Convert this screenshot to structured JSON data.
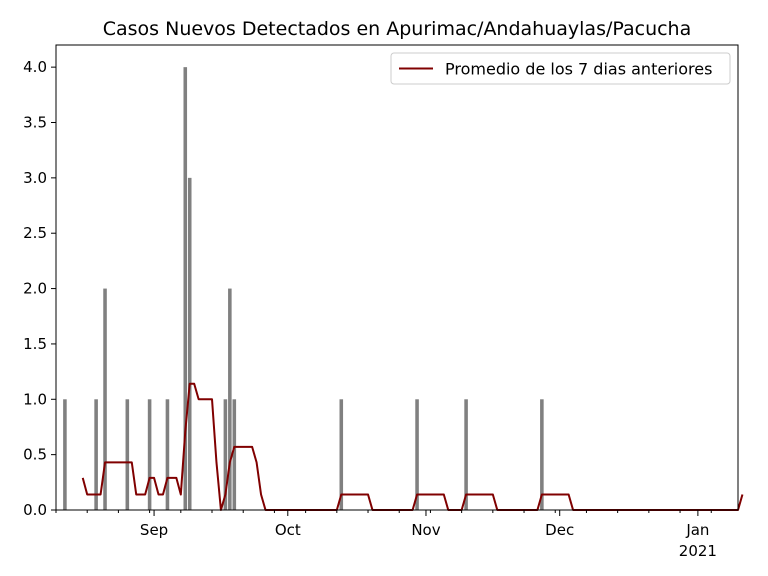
{
  "chart_data": {
    "type": "bar",
    "title": "Casos Nuevos Detectados en Apurimac/Andahuaylas/Pacucha",
    "xlabel": "",
    "ylabel": "",
    "ylim": [
      0,
      4.2
    ],
    "yticks": [
      "0.0",
      "0.5",
      "1.0",
      "1.5",
      "2.0",
      "2.5",
      "3.0",
      "3.5",
      "4.0"
    ],
    "xrange": [
      "2020-08-10",
      "2021-01-10"
    ],
    "xticks": [
      {
        "date": "2020-09-01",
        "label": "Sep"
      },
      {
        "date": "2020-10-01",
        "label": "Oct"
      },
      {
        "date": "2020-11-01",
        "label": "Nov"
      },
      {
        "date": "2020-12-01",
        "label": "Dec"
      },
      {
        "date": "2021-01-01",
        "label": "Jan",
        "sublabel": "2021"
      }
    ],
    "bars": {
      "color": "#808080",
      "points": [
        {
          "date": "2020-08-12",
          "value": 1
        },
        {
          "date": "2020-08-19",
          "value": 1
        },
        {
          "date": "2020-08-21",
          "value": 2
        },
        {
          "date": "2020-08-26",
          "value": 1
        },
        {
          "date": "2020-08-31",
          "value": 1
        },
        {
          "date": "2020-09-04",
          "value": 1
        },
        {
          "date": "2020-09-08",
          "value": 4
        },
        {
          "date": "2020-09-09",
          "value": 3
        },
        {
          "date": "2020-09-17",
          "value": 1
        },
        {
          "date": "2020-09-18",
          "value": 2
        },
        {
          "date": "2020-09-19",
          "value": 1
        },
        {
          "date": "2020-10-13",
          "value": 1
        },
        {
          "date": "2020-10-30",
          "value": 1
        },
        {
          "date": "2020-11-10",
          "value": 1
        },
        {
          "date": "2020-11-27",
          "value": 1
        },
        {
          "date": "2021-01-11",
          "value": 1
        }
      ]
    },
    "series": [
      {
        "name": "Promedio de los 7 dias anteriores",
        "color": "#800000",
        "points": [
          [
            "2020-08-16",
            0.29
          ],
          [
            "2020-08-17",
            0.14
          ],
          [
            "2020-08-20",
            0.14
          ],
          [
            "2020-08-21",
            0.43
          ],
          [
            "2020-08-27",
            0.43
          ],
          [
            "2020-08-28",
            0.14
          ],
          [
            "2020-08-30",
            0.14
          ],
          [
            "2020-08-31",
            0.29
          ],
          [
            "2020-09-01",
            0.29
          ],
          [
            "2020-09-02",
            0.14
          ],
          [
            "2020-09-03",
            0.14
          ],
          [
            "2020-09-04",
            0.29
          ],
          [
            "2020-09-06",
            0.29
          ],
          [
            "2020-09-07",
            0.14
          ],
          [
            "2020-09-08",
            0.71
          ],
          [
            "2020-09-09",
            1.14
          ],
          [
            "2020-09-10",
            1.14
          ],
          [
            "2020-09-11",
            1.0
          ],
          [
            "2020-09-14",
            1.0
          ],
          [
            "2020-09-15",
            0.43
          ],
          [
            "2020-09-16",
            0.0
          ],
          [
            "2020-09-17",
            0.14
          ],
          [
            "2020-09-18",
            0.43
          ],
          [
            "2020-09-19",
            0.57
          ],
          [
            "2020-09-23",
            0.57
          ],
          [
            "2020-09-24",
            0.43
          ],
          [
            "2020-09-25",
            0.14
          ],
          [
            "2020-09-26",
            0.0
          ],
          [
            "2020-10-12",
            0.0
          ],
          [
            "2020-10-13",
            0.14
          ],
          [
            "2020-10-19",
            0.14
          ],
          [
            "2020-10-20",
            0.0
          ],
          [
            "2020-10-29",
            0.0
          ],
          [
            "2020-10-30",
            0.14
          ],
          [
            "2020-11-05",
            0.14
          ],
          [
            "2020-11-06",
            0.0
          ],
          [
            "2020-11-09",
            0.0
          ],
          [
            "2020-11-10",
            0.14
          ],
          [
            "2020-11-16",
            0.14
          ],
          [
            "2020-11-17",
            0.0
          ],
          [
            "2020-11-26",
            0.0
          ],
          [
            "2020-11-27",
            0.14
          ],
          [
            "2020-12-03",
            0.14
          ],
          [
            "2020-12-04",
            0.0
          ],
          [
            "2021-01-10",
            0.0
          ],
          [
            "2021-01-11",
            0.14
          ]
        ]
      }
    ],
    "legend": {
      "position": "top-right"
    },
    "grid": false
  }
}
